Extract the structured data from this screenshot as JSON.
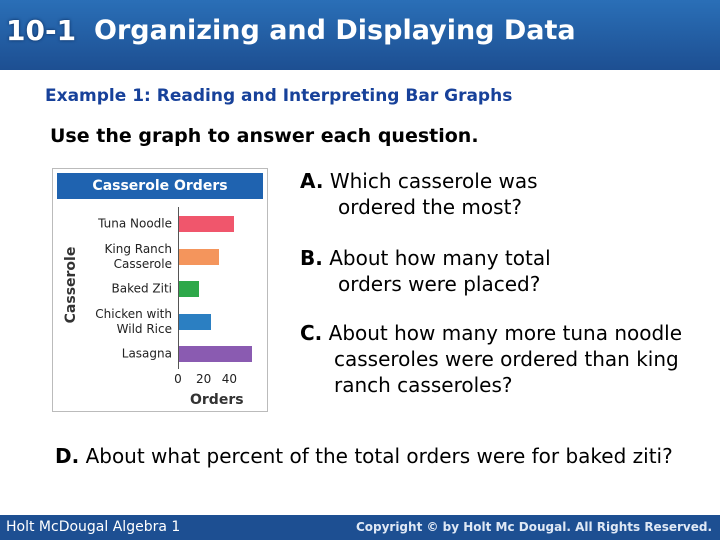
{
  "header": {
    "number": "10-1",
    "title": "Organizing and Displaying Data"
  },
  "example_title": "Example 1: Reading and Interpreting Bar Graphs",
  "instruction": "Use the graph to answer each question.",
  "chart_data": {
    "type": "bar",
    "orientation": "horizontal",
    "title": "Casserole Orders",
    "categories": [
      "Tuna Noodle",
      "King Ranch Casserole",
      "Baked Ziti",
      "Chicken with Wild Rice",
      "Lasagna"
    ],
    "values": [
      44,
      32,
      16,
      26,
      58
    ],
    "colors": [
      "#f0566c",
      "#f4955c",
      "#2ea84a",
      "#2b7fc2",
      "#8a5bb1"
    ],
    "xlim": [
      0,
      60
    ],
    "xticks": [
      0,
      20,
      40
    ],
    "x_label": "Orders",
    "y_label": "Casserole"
  },
  "questions": [
    {
      "label": "A.",
      "text": "Which casserole was ordered the most?"
    },
    {
      "label": "B.",
      "text": "About how many total orders were placed?"
    },
    {
      "label": "C.",
      "text": "About how many more tuna noodle casseroles were ordered than king ranch casseroles?"
    },
    {
      "label": "D.",
      "text": "About what percent of the total orders were for baked ziti?"
    }
  ],
  "footer": {
    "left": "Holt McDougal Algebra 1",
    "right": "Copyright © by Holt Mc Dougal. All Rights Reserved."
  }
}
